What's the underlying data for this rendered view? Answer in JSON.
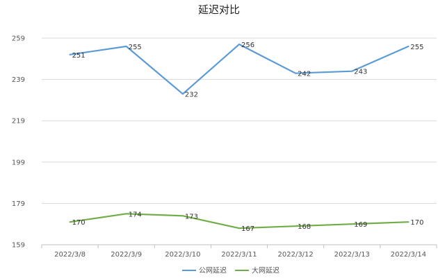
{
  "chart_data": {
    "type": "line",
    "title": "延迟对比",
    "xlabel": "",
    "ylabel": "",
    "categories": [
      "2022/3/8",
      "2022/3/9",
      "2022/3/10",
      "2022/3/11",
      "2022/3/12",
      "2022/3/13",
      "2022/3/14"
    ],
    "ylim": [
      159,
      259
    ],
    "yticks": [
      159,
      179,
      199,
      219,
      239,
      259
    ],
    "grid": true,
    "legend_position": "bottom",
    "series": [
      {
        "name": "公网延迟",
        "color": "#5b9bd5",
        "values": [
          251,
          255,
          232,
          256,
          242,
          243,
          255
        ]
      },
      {
        "name": "大网延迟",
        "color": "#70ad47",
        "values": [
          170,
          174,
          173,
          167,
          168,
          169,
          170
        ]
      }
    ]
  }
}
